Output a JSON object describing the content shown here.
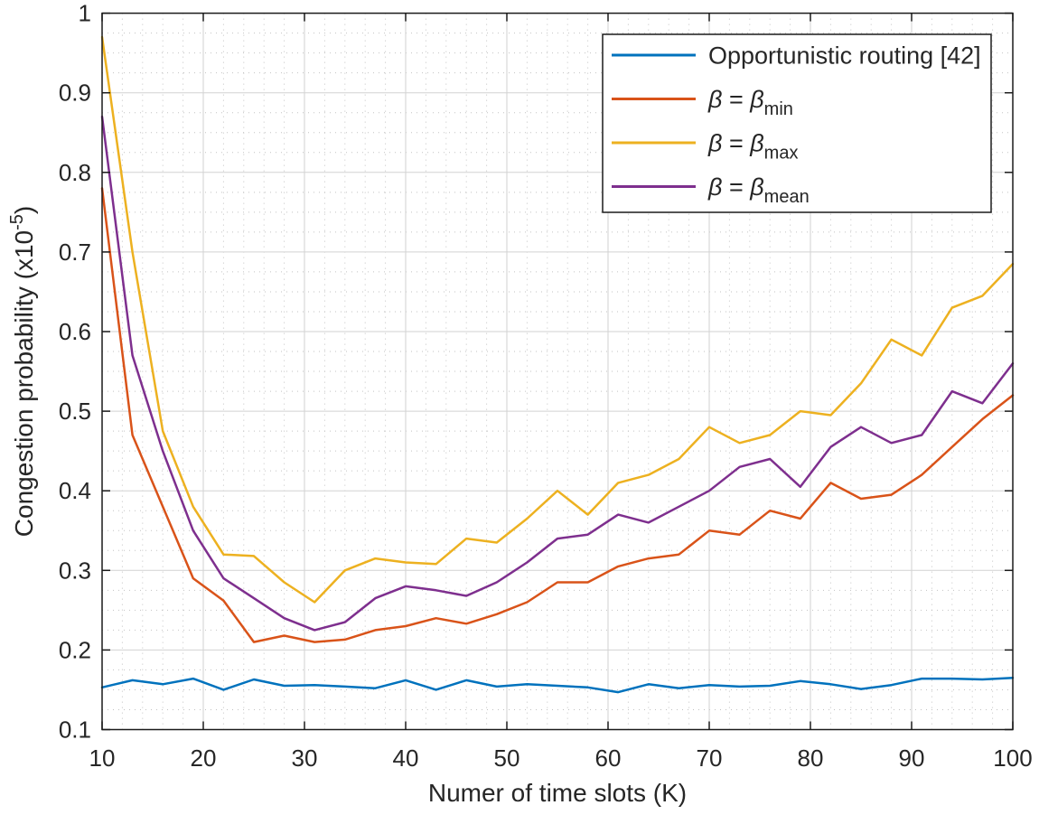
{
  "figure": {
    "background": "#ffffff",
    "text_color": "#262626",
    "axis_color": "#1a1a1a",
    "major_grid_color": "#d2d2d2",
    "minor_grid_color": "#b4b4b4"
  },
  "chart_data": {
    "type": "line",
    "title": "",
    "xlabel": "Numer of time slots (K)",
    "ylabel": "Congestion probability (x10^-5)",
    "ylabel_parts": {
      "base": "Congestion probability (x10",
      "exponent": "-5",
      "close": ")"
    },
    "xlim": [
      10,
      100
    ],
    "ylim": [
      0.1,
      1
    ],
    "xticks": [
      "10",
      "20",
      "30",
      "40",
      "50",
      "60",
      "70",
      "80",
      "90",
      "100"
    ],
    "yticks": [
      "0.1",
      "0.2",
      "0.3",
      "0.4",
      "0.5",
      "0.6",
      "0.7",
      "0.8",
      "0.9",
      "1"
    ],
    "minor_x_step": 2,
    "minor_y_step": 0.025,
    "grid": "major-solid-minor-dotted",
    "legend_position": "top-right-inside",
    "x": [
      10,
      13,
      16,
      19,
      22,
      25,
      28,
      31,
      34,
      37,
      40,
      43,
      46,
      49,
      52,
      55,
      58,
      61,
      64,
      67,
      70,
      73,
      76,
      79,
      82,
      85,
      88,
      91,
      94,
      97,
      100
    ],
    "series": [
      {
        "name": "Opportunistic routing [42]",
        "legend": {
          "type": "text",
          "text": "Opportunistic routing [42]"
        },
        "color": "#0072BD",
        "values": [
          0.153,
          0.162,
          0.157,
          0.164,
          0.15,
          0.163,
          0.155,
          0.156,
          0.154,
          0.152,
          0.162,
          0.15,
          0.162,
          0.154,
          0.157,
          0.155,
          0.153,
          0.147,
          0.157,
          0.152,
          0.156,
          0.154,
          0.155,
          0.161,
          0.157,
          0.151,
          0.156,
          0.164,
          0.164,
          0.163,
          0.165
        ]
      },
      {
        "name": "β = β_min",
        "legend": {
          "type": "beta",
          "beta": "β",
          "eq": " = ",
          "sub": "min"
        },
        "color": "#D95319",
        "values": [
          0.78,
          0.47,
          0.38,
          0.29,
          0.262,
          0.21,
          0.218,
          0.21,
          0.213,
          0.225,
          0.23,
          0.24,
          0.233,
          0.245,
          0.26,
          0.285,
          0.285,
          0.305,
          0.315,
          0.32,
          0.35,
          0.345,
          0.375,
          0.365,
          0.41,
          0.39,
          0.395,
          0.42,
          0.455,
          0.49,
          0.52
        ]
      },
      {
        "name": "β = β_max",
        "legend": {
          "type": "beta",
          "beta": "β",
          "eq": " = ",
          "sub": "max"
        },
        "color": "#EDB120",
        "values": [
          0.97,
          0.7,
          0.475,
          0.38,
          0.32,
          0.318,
          0.285,
          0.26,
          0.3,
          0.315,
          0.31,
          0.308,
          0.34,
          0.335,
          0.365,
          0.4,
          0.37,
          0.41,
          0.42,
          0.44,
          0.48,
          0.46,
          0.47,
          0.5,
          0.495,
          0.535,
          0.59,
          0.57,
          0.63,
          0.645,
          0.685
        ]
      },
      {
        "name": "β = β_mean",
        "legend": {
          "type": "beta",
          "beta": "β",
          "eq": " = ",
          "sub": "mean"
        },
        "color": "#7E2F8E",
        "values": [
          0.87,
          0.57,
          0.45,
          0.35,
          0.29,
          0.265,
          0.24,
          0.225,
          0.235,
          0.265,
          0.28,
          0.275,
          0.268,
          0.285,
          0.31,
          0.34,
          0.345,
          0.37,
          0.36,
          0.38,
          0.4,
          0.43,
          0.44,
          0.405,
          0.455,
          0.48,
          0.46,
          0.47,
          0.525,
          0.51,
          0.56
        ]
      }
    ]
  }
}
